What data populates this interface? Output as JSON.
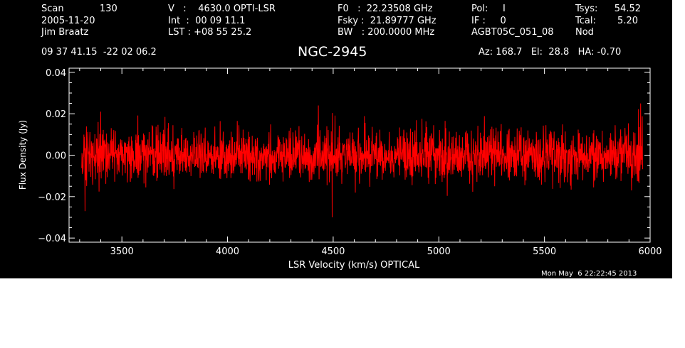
{
  "header": {
    "col1": {
      "scan_label": "Scan",
      "scan_value": "130",
      "date": "2005-11-20",
      "observer": "Jim Braatz"
    },
    "col2": {
      "line1": "V   :    4630.0 OPTI-LSR",
      "line2": "Int  :  00 09 11.1",
      "line3": "LST : +08 55 25.2"
    },
    "col3": {
      "line1": "F0   :  22.23508 GHz",
      "line2": "Fsky :  21.89777 GHz",
      "line3": "BW   : 200.0000 MHz"
    },
    "col4": {
      "line1": "Pol:     I",
      "line2": "IF :     0",
      "line3": "AGBT05C_051_08"
    },
    "col5": {
      "tsys_label": "Tsys:",
      "tsys_value": "54.52",
      "tcal_label": "Tcal:",
      "tcal_value": "5.20",
      "mode": "Nod"
    },
    "coords": "09 37 41.15  -22 02 06.2",
    "source": "NGC-2945",
    "pointing": "Az: 168.7   El:  28.8   HA: -0.70"
  },
  "timestamp": "Mon May  6 22:22:45 2013",
  "colors": {
    "background": "#000000",
    "axes": "#ffffff",
    "series": "#ff0000"
  },
  "chart_data": {
    "type": "line",
    "xlabel": "LSR Velocity (km/s) OPTICAL",
    "ylabel": "Flux Density (Jy)",
    "xlim": [
      3250,
      6000
    ],
    "ylim": [
      -0.042,
      0.042
    ],
    "x_ticks": [
      3500,
      4000,
      4500,
      5000,
      5500,
      6000
    ],
    "x_tick_labels": [
      "3500",
      "4000",
      "4500",
      "5000",
      "5500",
      "6000"
    ],
    "y_ticks": [
      -0.04,
      -0.02,
      0.0,
      0.02,
      0.04
    ],
    "y_tick_labels": [
      "−0.04",
      "−0.02",
      "0.00",
      "0.02",
      "0.04"
    ],
    "grid": false,
    "series": [
      {
        "color": "#ff0000",
        "x_range": [
          3310,
          5965
        ],
        "y_mean": 0.0,
        "y_rms": 0.006,
        "y_extent": [
          -0.03,
          0.025
        ],
        "notable_points": [
          {
            "x": 3325,
            "y": -0.027
          },
          {
            "x": 3400,
            "y": 0.021
          },
          {
            "x": 4430,
            "y": 0.024
          },
          {
            "x": 4495,
            "y": -0.03
          },
          {
            "x": 5955,
            "y": 0.025
          }
        ]
      }
    ]
  }
}
